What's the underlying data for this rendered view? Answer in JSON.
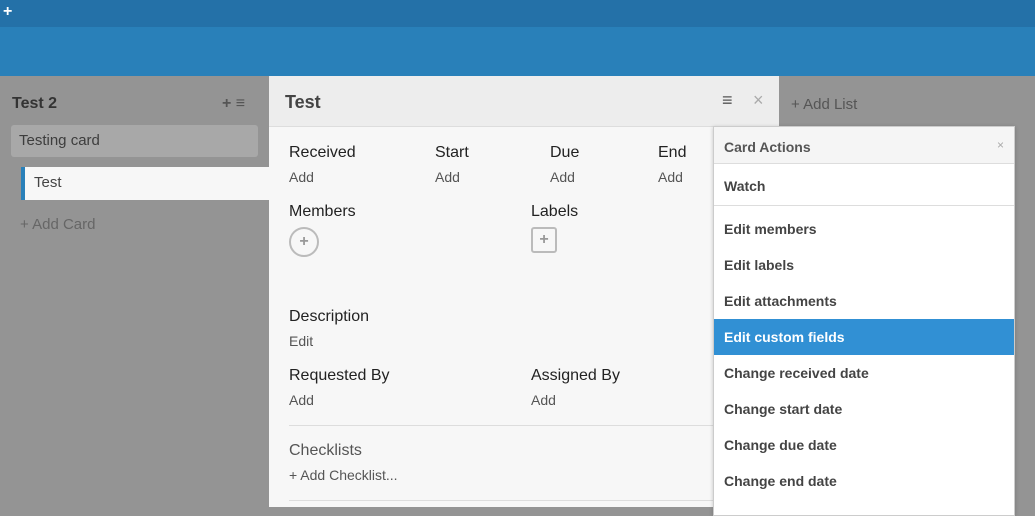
{
  "topbar": {
    "plus": "+"
  },
  "list": {
    "title": "Test 2",
    "add_icon": "+",
    "menu_icon": "≡",
    "cards": [
      "Testing card",
      "Test"
    ],
    "add_card": "+  Add Card"
  },
  "add_list": "+ Add List",
  "detail": {
    "title": "Test",
    "menu_icon": "≡",
    "close_icon": "×",
    "dates": [
      {
        "label": "Received",
        "value": "Add"
      },
      {
        "label": "Start",
        "value": "Add"
      },
      {
        "label": "Due",
        "value": "Add"
      },
      {
        "label": "End",
        "value": "Add"
      }
    ],
    "members": "Members",
    "labels": "Labels",
    "plus": "+",
    "description": "Description",
    "description_edit": "Edit",
    "requested_by": "Requested By",
    "requested_value": "Add",
    "assigned_by": "Assigned By",
    "assigned_value": "Add",
    "checklists": "Checklists",
    "add_checklist": "+ Add Checklist..."
  },
  "popup": {
    "title": "Card Actions",
    "close": "×",
    "watch": "Watch",
    "items": [
      "Edit members",
      "Edit labels",
      "Edit attachments",
      "Edit custom fields",
      "Change received date",
      "Change start date",
      "Change due date",
      "Change end date"
    ],
    "active_index": 3,
    "accent": "#3190d4"
  }
}
